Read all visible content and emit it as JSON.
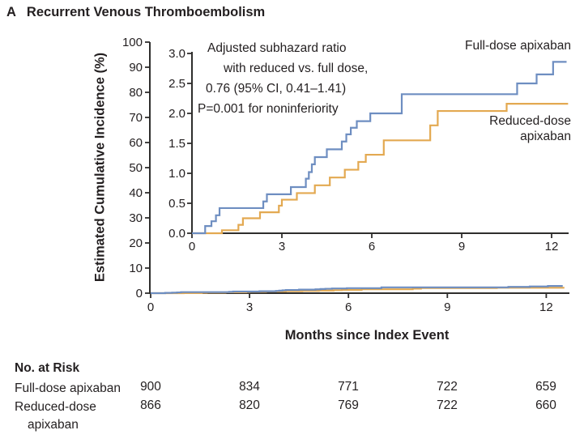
{
  "title": {
    "panel": "A",
    "text": "Recurrent Venous Thromboembolism"
  },
  "colors": {
    "full_dose": "#6e8ec1",
    "reduced_dose": "#e3a951",
    "axis": "#2f2e2d",
    "text": "#231f20"
  },
  "annotation": {
    "lines": [
      "Adjusted subhazard ratio",
      "with reduced vs. full dose,",
      "0.76 (95% CI, 0.41–1.41)",
      "P=0.001 for noninferiority"
    ]
  },
  "labels": {
    "full_dose": "Full-dose apixaban",
    "reduced_dose": "Reduced-dose apixaban"
  },
  "axes": {
    "main": {
      "ylabel": "Estimated Cumulative Incidence (%)",
      "xlabel": "Months since Index Event",
      "yticks": [
        0,
        10,
        20,
        30,
        40,
        50,
        60,
        70,
        80,
        90,
        100
      ],
      "xticks": [
        0,
        3,
        6,
        9,
        12
      ],
      "ylim": [
        0,
        100
      ],
      "xlim": [
        0,
        12.7
      ]
    },
    "inset": {
      "yticks": [
        "0.0",
        "0.5",
        "1.0",
        "1.5",
        "2.0",
        "2.5",
        "3.0"
      ],
      "xticks": [
        0,
        3,
        6,
        9,
        12
      ],
      "ylim": [
        0,
        3.0
      ],
      "xlim": [
        0,
        12.7
      ]
    }
  },
  "chart_data": {
    "type": "line",
    "subtype": "step-post-cumulative-incidence",
    "title": "Recurrent Venous Thromboembolism",
    "xlabel": "Months since Index Event",
    "ylabel": "Estimated Cumulative Incidence (%)",
    "main_ylim": [
      0,
      100
    ],
    "inset_ylim": [
      0,
      3.0
    ],
    "xlim": [
      0,
      12.7
    ],
    "grid": false,
    "legend_position": "inline-right-labels",
    "annotation": "Adjusted subhazard ratio with reduced vs. full dose, 0.76 (95% CI, 0.41–1.41); P=0.001 for noninferiority",
    "series": [
      {
        "name": "Reduced-dose apixaban",
        "color_key": "reduced_dose",
        "x": [
          0,
          1.0,
          1.55,
          1.7,
          2.27,
          2.9,
          3.0,
          3.5,
          4.1,
          4.6,
          5.1,
          5.55,
          5.8,
          6.4,
          7.95,
          8.2,
          10.5
        ],
        "y": [
          0,
          0.05,
          0.14,
          0.25,
          0.35,
          0.46,
          0.56,
          0.67,
          0.8,
          0.93,
          1.06,
          1.19,
          1.31,
          1.55,
          1.8,
          2.04,
          2.16
        ],
        "x_end": 12.55
      },
      {
        "name": "Full-dose apixaban",
        "color_key": "full_dose",
        "x": [
          0,
          0.44,
          0.65,
          0.8,
          0.92,
          2.38,
          2.5,
          3.3,
          3.8,
          3.9,
          4.0,
          4.1,
          4.5,
          5.0,
          5.15,
          5.3,
          5.5,
          5.95,
          7.0,
          10.85,
          11.5,
          12.05
        ],
        "y": [
          0,
          0.12,
          0.2,
          0.3,
          0.42,
          0.53,
          0.65,
          0.77,
          0.91,
          1.02,
          1.15,
          1.27,
          1.4,
          1.53,
          1.65,
          1.76,
          1.87,
          2.0,
          2.32,
          2.5,
          2.65,
          2.86
        ],
        "x_end": 12.5
      }
    ],
    "at_risk": {
      "times": [
        0,
        3,
        6,
        9,
        12
      ],
      "full_dose": [
        900,
        834,
        771,
        722,
        659
      ],
      "reduced_dose": [
        866,
        820,
        769,
        722,
        660
      ]
    }
  },
  "risk_table": {
    "header": "No. at Risk",
    "rows": [
      {
        "label": "Full-dose apixaban",
        "values": [
          900,
          834,
          771,
          722,
          659
        ]
      },
      {
        "label": "Reduced-dose apixaban",
        "values": [
          866,
          820,
          769,
          722,
          660
        ]
      }
    ]
  }
}
